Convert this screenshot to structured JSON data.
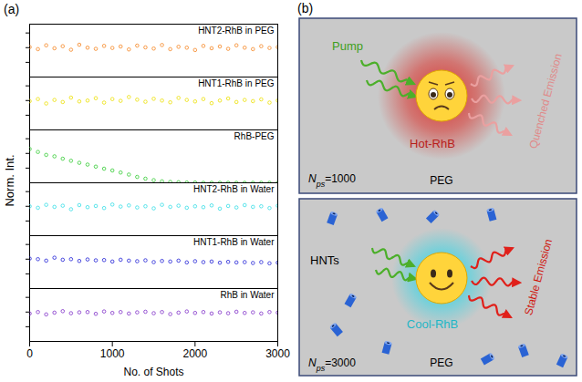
{
  "chart_data": {
    "type": "scatter",
    "xlabel": "No. of Shots",
    "ylabel": "Norm. Int.",
    "x": [
      0,
      100,
      200,
      300,
      400,
      500,
      600,
      700,
      800,
      900,
      1000,
      1100,
      1200,
      1300,
      1400,
      1500,
      1600,
      1700,
      1800,
      1900,
      2000,
      2100,
      2200,
      2300,
      2400,
      2500,
      2600,
      2700,
      2800,
      2900,
      3000
    ],
    "series": [
      {
        "name": "HNT2-RhB in PEG",
        "color": "#f5841f",
        "values": [
          1.02,
          0.95,
          1.08,
          0.98,
          1.05,
          0.93,
          1.1,
          1.0,
          0.96,
          1.06,
          0.99,
          1.04,
          0.94,
          1.07,
          1.01,
          0.97,
          1.09,
          0.95,
          1.03,
          1.0,
          0.92,
          1.06,
          0.98,
          1.04,
          0.96,
          1.08,
          1.0,
          0.95,
          1.05,
          0.99,
          1.02
        ]
      },
      {
        "name": "HNT1-RhB in PEG",
        "color": "#ece000",
        "values": [
          0.98,
          1.05,
          0.9,
          1.02,
          0.95,
          1.1,
          0.97,
          1.0,
          1.08,
          0.93,
          1.05,
          0.99,
          1.12,
          1.03,
          0.96,
          1.06,
          1.0,
          0.94,
          1.09,
          1.02,
          0.97,
          1.05,
          0.91,
          1.0,
          1.07,
          0.95,
          1.02,
          0.98,
          1.04,
          0.93,
          1.0
        ]
      },
      {
        "name": "RhB-PEG",
        "color": "#33cc33",
        "values": [
          1.15,
          1.05,
          0.95,
          0.9,
          0.82,
          0.75,
          0.68,
          0.62,
          0.55,
          0.48,
          0.42,
          0.35,
          0.28,
          0.2,
          0.14,
          0.09,
          0.05,
          0.03,
          0.02,
          0.01,
          0.01,
          0,
          0,
          0,
          0,
          0,
          0,
          0,
          0,
          0,
          0
        ]
      },
      {
        "name": "HNT2-RhB in Water",
        "color": "#33dde6",
        "values": [
          1.0,
          0.95,
          1.05,
          0.98,
          1.02,
          0.9,
          1.04,
          0.97,
          1.01,
          0.94,
          1.06,
          0.99,
          1.03,
          0.96,
          1.0,
          0.93,
          1.05,
          0.98,
          1.02,
          0.95,
          1.0,
          0.97,
          1.03,
          0.92,
          1.01,
          0.96,
          1.04,
          0.98,
          1.0,
          0.94,
          1.02
        ]
      },
      {
        "name": "HNT1-RhB in Water",
        "color": "#1f1fd6",
        "values": [
          1.02,
          1.0,
          0.95,
          1.05,
          0.98,
          1.0,
          0.94,
          0.99,
          0.96,
          0.97,
          0.92,
          0.98,
          0.95,
          0.93,
          0.96,
          0.9,
          0.94,
          0.92,
          0.95,
          0.89,
          0.93,
          0.9,
          0.92,
          0.88,
          0.91,
          0.89,
          0.9,
          0.87,
          0.9,
          0.86,
          0.88
        ]
      },
      {
        "name": "RhB in Water",
        "color": "#7f2fc8",
        "values": [
          0.95,
          1.0,
          0.92,
          0.98,
          1.03,
          0.96,
          0.99,
          1.0,
          0.94,
          1.02,
          0.97,
          1.0,
          0.95,
          0.99,
          1.01,
          0.96,
          1.0,
          0.93,
          0.98,
          1.02,
          0.97,
          1.0,
          0.95,
          0.99,
          0.96,
          1.01,
          0.97,
          0.99,
          0.95,
          1.0,
          0.98
        ]
      }
    ],
    "xlim": [
      0,
      3000
    ],
    "xticks": [
      0,
      1000,
      2000,
      3000
    ],
    "ylim": [
      0,
      1.8
    ],
    "yticks": [
      0.5,
      1,
      1.5
    ],
    "tick_labels": "x",
    "marker": "circle"
  },
  "figure_labels": [
    "(a)",
    "(b)"
  ],
  "diagram": {
    "boxes": [
      {
        "pump": "Pump",
        "molecule": "Hot-RhB",
        "emission": "Quenched Emission",
        "medium": "PEG",
        "count": {
          "symbol": "N",
          "subscript": "ps",
          "text": "=1000"
        }
      },
      {
        "particles": "HNTs",
        "molecule": "Cool-RhB",
        "emission": "Stable Emission",
        "medium": "PEG",
        "count": {
          "symbol": "N",
          "subscript": "ps",
          "text": "=3000"
        }
      }
    ]
  }
}
